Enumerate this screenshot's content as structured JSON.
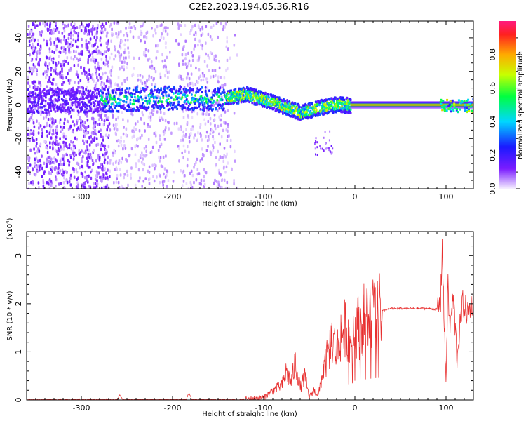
{
  "title": "C2E2.2023.194.05.36.R16",
  "chart_data": [
    {
      "type": "heatmap",
      "xlabel": "Height of straight line (km)",
      "ylabel": "Frequency (Hz)",
      "xlim": [
        -360,
        130
      ],
      "ylim": [
        -50,
        50
      ],
      "xticks": [
        -300,
        -200,
        -100,
        0,
        100
      ],
      "yticks": [
        -40,
        -20,
        0,
        20,
        40
      ],
      "colorbar": {
        "label": "Normalized spectral amplitude",
        "range": [
          0,
          1
        ],
        "ticks": [
          0.0,
          0.2,
          0.4,
          0.6,
          0.8
        ],
        "colors": [
          "#f6f0ff",
          "#7a1cff",
          "#1a1aff",
          "#00d7ff",
          "#00ff40",
          "#c8ff00",
          "#ffaa00",
          "#ff2020",
          "#ff1a80"
        ]
      },
      "ridge": {
        "x": [
          -300,
          -250,
          -200,
          -150,
          -120,
          -90,
          -60,
          -40,
          -20,
          0,
          130
        ],
        "y": [
          3,
          4,
          5,
          4,
          7,
          2,
          -4,
          -1,
          1,
          0,
          0
        ]
      }
    },
    {
      "type": "line",
      "xlabel": "Height of straight line (km)",
      "ylabel": "SNR (10 * v/v)",
      "yscale_label": "(x10",
      "yscale_exp": "4",
      "yscale_close": ")",
      "xlim": [
        -360,
        130
      ],
      "ylim": [
        0,
        3.5
      ],
      "xticks": [
        -300,
        -200,
        -100,
        0,
        100
      ],
      "yticks": [
        0,
        1,
        2,
        3
      ],
      "series": [
        {
          "color": "#e83030",
          "x": [
            -360,
            -300,
            -260,
            -258,
            -255,
            -200,
            -185,
            -182,
            -179,
            -150,
            -120,
            -110,
            -100,
            -90,
            -80,
            -75,
            -70,
            -65,
            -60,
            -55,
            -50,
            -45,
            -40,
            -35,
            -30,
            -25,
            -20,
            -15,
            -10,
            -5,
            0,
            5,
            10,
            20,
            30,
            40,
            60,
            80,
            90,
            94,
            96,
            98,
            100,
            102,
            104,
            108,
            112,
            118,
            124,
            130
          ],
          "y": [
            0.01,
            0.01,
            0.01,
            0.12,
            0.01,
            0.01,
            0.01,
            0.15,
            0.01,
            0.01,
            0.01,
            0.03,
            0.05,
            0.2,
            0.3,
            0.6,
            0.35,
            0.8,
            0.25,
            0.5,
            0.05,
            0.2,
            0.1,
            0.6,
            0.9,
            1.3,
            1.0,
            1.4,
            1.5,
            1.2,
            1.6,
            1.5,
            1.7,
            1.8,
            1.85,
            1.9,
            1.9,
            1.9,
            1.88,
            2.0,
            3.3,
            1.5,
            0.4,
            2.4,
            1.5,
            2.1,
            0.9,
            2.0,
            1.8,
            2.1
          ]
        }
      ]
    }
  ]
}
